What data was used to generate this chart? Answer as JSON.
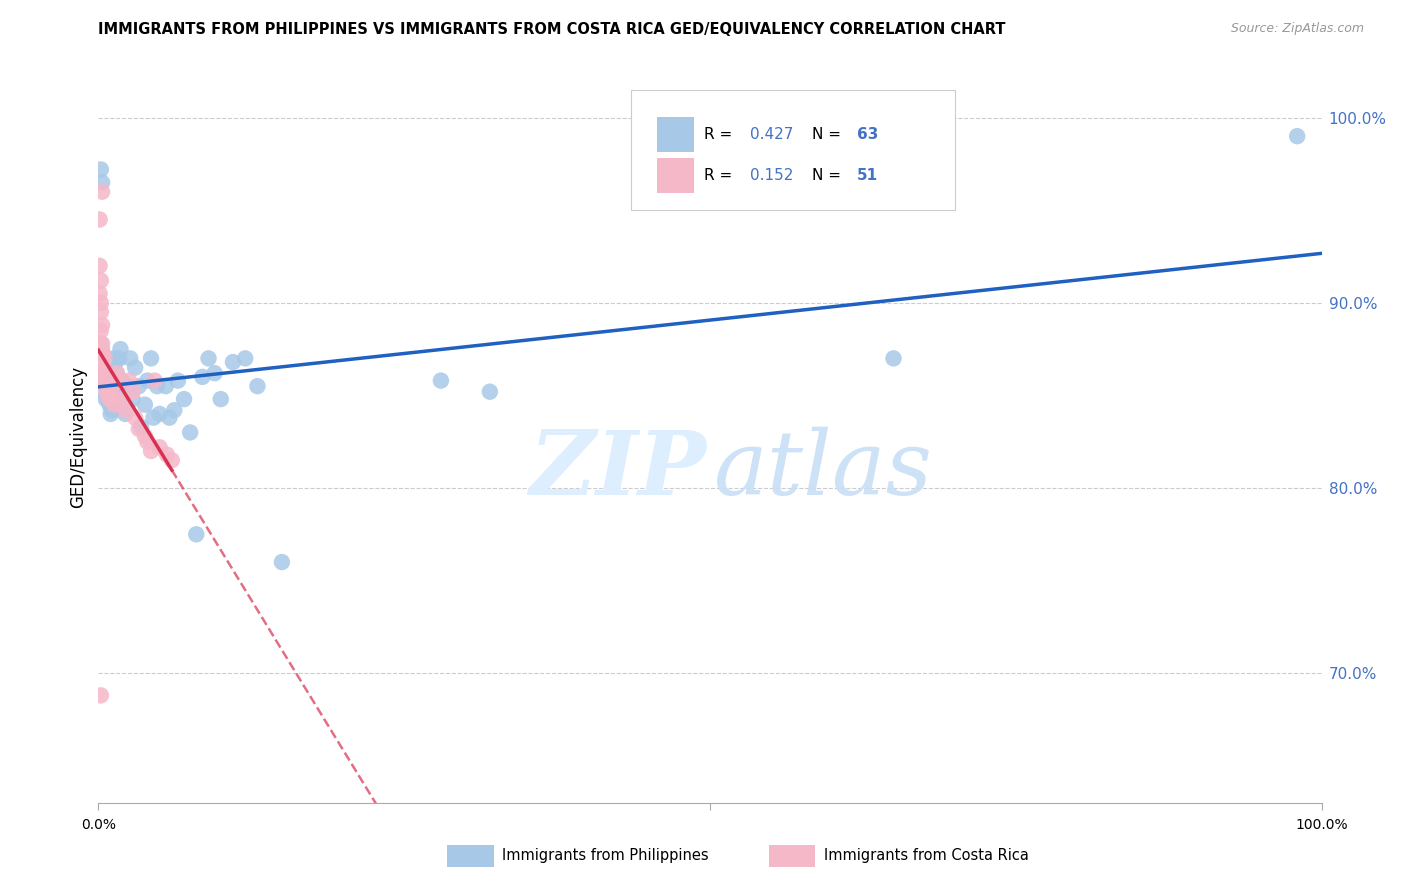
{
  "title": "IMMIGRANTS FROM PHILIPPINES VS IMMIGRANTS FROM COSTA RICA GED/EQUIVALENCY CORRELATION CHART",
  "source": "Source: ZipAtlas.com",
  "ylabel": "GED/Equivalency",
  "ytick_values": [
    0.7,
    0.8,
    0.9,
    1.0
  ],
  "color_philippines": "#a8c8e8",
  "color_costarica": "#f5b8c8",
  "color_line_philippines": "#2060c0",
  "color_line_costarica": "#d83050",
  "color_text_blue": "#4472c4",
  "watermark_zip_color": "#ddeeff",
  "watermark_atlas_color": "#c8dff5",
  "r_philippines": 0.427,
  "n_philippines": 63,
  "r_costarica": 0.152,
  "n_costarica": 51,
  "philippines_x": [
    0.001,
    0.002,
    0.002,
    0.003,
    0.003,
    0.004,
    0.004,
    0.005,
    0.005,
    0.005,
    0.006,
    0.006,
    0.006,
    0.007,
    0.007,
    0.008,
    0.008,
    0.009,
    0.009,
    0.01,
    0.01,
    0.011,
    0.012,
    0.013,
    0.014,
    0.015,
    0.016,
    0.017,
    0.018,
    0.019,
    0.02,
    0.022,
    0.024,
    0.026,
    0.028,
    0.03,
    0.033,
    0.035,
    0.038,
    0.04,
    0.043,
    0.045,
    0.048,
    0.05,
    0.055,
    0.058,
    0.062,
    0.065,
    0.07,
    0.075,
    0.08,
    0.085,
    0.09,
    0.095,
    0.1,
    0.11,
    0.12,
    0.13,
    0.15,
    0.28,
    0.32,
    0.65,
    0.98
  ],
  "philippines_y": [
    0.878,
    0.875,
    0.972,
    0.965,
    0.87,
    0.872,
    0.858,
    0.86,
    0.852,
    0.87,
    0.848,
    0.862,
    0.87,
    0.853,
    0.865,
    0.848,
    0.862,
    0.845,
    0.858,
    0.84,
    0.855,
    0.842,
    0.843,
    0.87,
    0.868,
    0.862,
    0.855,
    0.87,
    0.875,
    0.858,
    0.85,
    0.84,
    0.855,
    0.87,
    0.848,
    0.865,
    0.855,
    0.833,
    0.845,
    0.858,
    0.87,
    0.838,
    0.855,
    0.84,
    0.855,
    0.838,
    0.842,
    0.858,
    0.848,
    0.83,
    0.775,
    0.86,
    0.87,
    0.862,
    0.848,
    0.868,
    0.87,
    0.855,
    0.76,
    0.858,
    0.852,
    0.87,
    0.99
  ],
  "costarica_x": [
    0.001,
    0.001,
    0.001,
    0.002,
    0.002,
    0.002,
    0.002,
    0.002,
    0.003,
    0.003,
    0.003,
    0.003,
    0.003,
    0.004,
    0.004,
    0.004,
    0.005,
    0.005,
    0.005,
    0.005,
    0.006,
    0.006,
    0.006,
    0.007,
    0.007,
    0.008,
    0.008,
    0.009,
    0.009,
    0.01,
    0.01,
    0.011,
    0.012,
    0.013,
    0.015,
    0.017,
    0.02,
    0.022,
    0.025,
    0.028,
    0.03,
    0.033,
    0.038,
    0.04,
    0.043,
    0.046,
    0.05,
    0.056,
    0.06,
    0.002,
    0.003
  ],
  "costarica_y": [
    0.945,
    0.92,
    0.905,
    0.912,
    0.9,
    0.895,
    0.885,
    0.878,
    0.888,
    0.875,
    0.862,
    0.878,
    0.865,
    0.872,
    0.86,
    0.868,
    0.862,
    0.858,
    0.87,
    0.855,
    0.862,
    0.855,
    0.858,
    0.852,
    0.855,
    0.858,
    0.85,
    0.855,
    0.848,
    0.86,
    0.852,
    0.855,
    0.848,
    0.845,
    0.862,
    0.858,
    0.848,
    0.842,
    0.858,
    0.852,
    0.838,
    0.832,
    0.828,
    0.825,
    0.82,
    0.858,
    0.822,
    0.818,
    0.815,
    0.688,
    0.96
  ]
}
